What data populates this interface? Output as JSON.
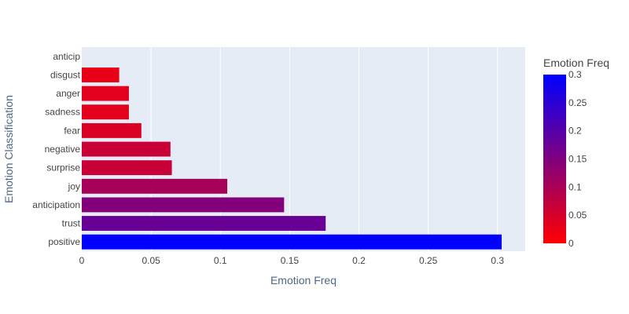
{
  "chart_data": {
    "type": "bar",
    "orientation": "horizontal",
    "xlabel": "Emotion Freq",
    "ylabel": "Emotion Classification",
    "xlim": [
      0,
      0.32
    ],
    "grid": true,
    "categories": [
      "positive",
      "trust",
      "anticipation",
      "joy",
      "surprise",
      "negative",
      "fear",
      "sadness",
      "anger",
      "disgust",
      "anticip"
    ],
    "values": [
      0.303,
      0.176,
      0.146,
      0.105,
      0.065,
      0.064,
      0.043,
      0.034,
      0.034,
      0.027,
      0.0
    ],
    "x_ticks": [
      "0",
      "0.05",
      "0.1",
      "0.15",
      "0.2",
      "0.25",
      "0.3"
    ],
    "colorbar": {
      "title": "Emotion Freq",
      "range": [
        0,
        0.3
      ],
      "ticks": [
        "0",
        "0.05",
        "0.1",
        "0.15",
        "0.2",
        "0.25",
        "0.3"
      ],
      "color_low": "#ff0000",
      "color_high": "#0000ff"
    },
    "plot_bg": "#e5ecf6",
    "grid_color": "#ffffff"
  }
}
